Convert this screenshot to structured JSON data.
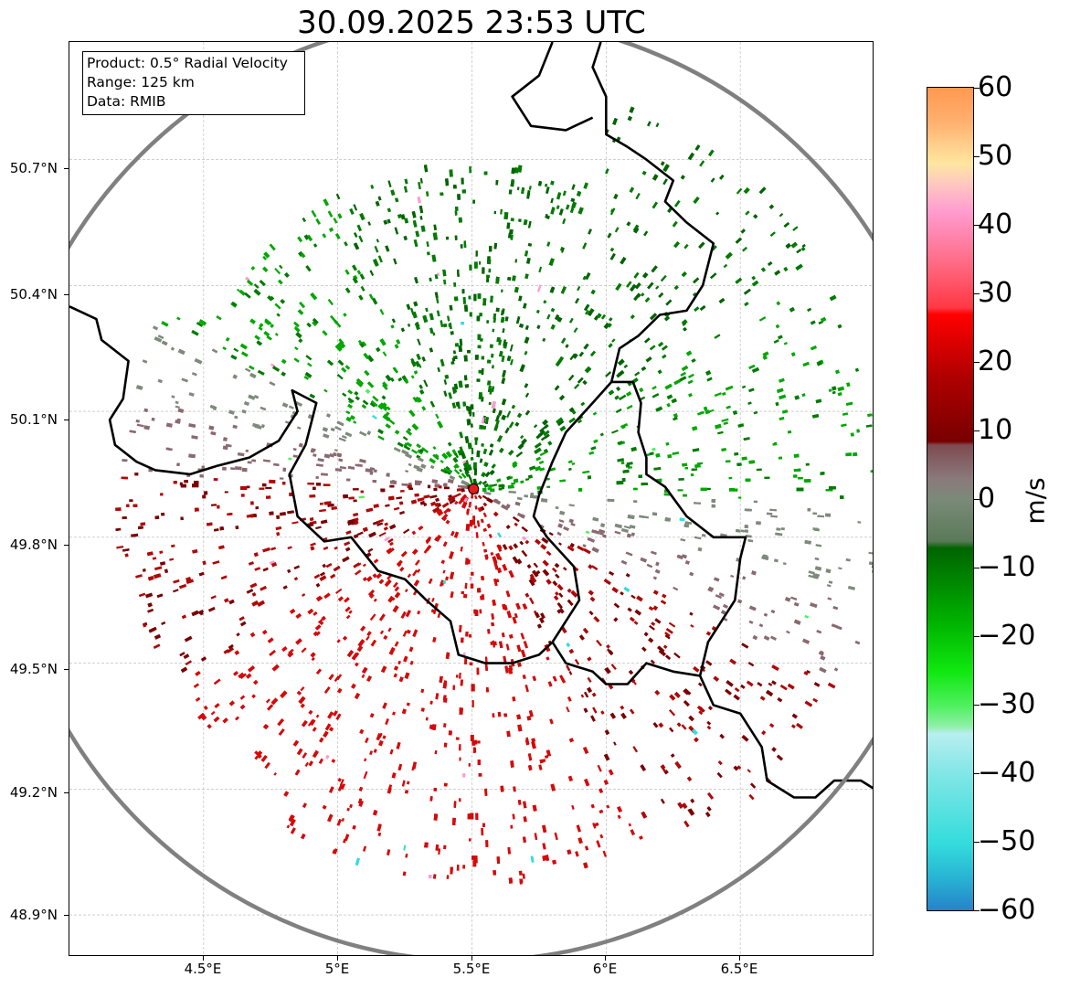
{
  "title": "30.09.2025 23:53 UTC",
  "info": {
    "product": "Product: 0.5° Radial Velocity",
    "range": "Range: 125 km",
    "data": "Data: RMIB"
  },
  "axes": {
    "lat_ticks": [
      "50.7°N",
      "50.4°N",
      "50.1°N",
      "49.8°N",
      "49.5°N",
      "49.2°N",
      "48.9°N"
    ],
    "lon_ticks": [
      "4.5°E",
      "5°E",
      "5.5°E",
      "6°E",
      "6.5°E"
    ]
  },
  "colorbar": {
    "unit": "m/s",
    "ticks": [
      "60",
      "50",
      "40",
      "30",
      "20",
      "10",
      "0",
      "−10",
      "−20",
      "−30",
      "−40",
      "−50",
      "−60"
    ],
    "min": -60,
    "max": 60,
    "stops": [
      {
        "v": -60,
        "c": "#2580c8"
      },
      {
        "v": -55,
        "c": "#28b4d4"
      },
      {
        "v": -50,
        "c": "#34dcdc"
      },
      {
        "v": -40,
        "c": "#80e6e6"
      },
      {
        "v": -34,
        "c": "#b8eef0"
      },
      {
        "v": -33,
        "c": "#90f0a8"
      },
      {
        "v": -30,
        "c": "#50f060"
      },
      {
        "v": -25,
        "c": "#10e810"
      },
      {
        "v": -18,
        "c": "#00b400"
      },
      {
        "v": -12,
        "c": "#008800"
      },
      {
        "v": -7,
        "c": "#006400"
      },
      {
        "v": -6,
        "c": "#5a7a58"
      },
      {
        "v": 0,
        "c": "#7a8a78"
      },
      {
        "v": 3,
        "c": "#8a7a7c"
      },
      {
        "v": 8,
        "c": "#7e4a50"
      },
      {
        "v": 8.5,
        "c": "#780000"
      },
      {
        "v": 18,
        "c": "#b00000"
      },
      {
        "v": 27,
        "c": "#ff0000"
      },
      {
        "v": 28,
        "c": "#ff3844"
      },
      {
        "v": 35,
        "c": "#ff6e8a"
      },
      {
        "v": 42,
        "c": "#ff9cd0"
      },
      {
        "v": 46,
        "c": "#ffc8c0"
      },
      {
        "v": 49,
        "c": "#ffe6a0"
      },
      {
        "v": 55,
        "c": "#ffb070"
      },
      {
        "v": 60,
        "c": "#ff9850"
      }
    ]
  },
  "radar": {
    "site": {
      "lat": 49.915,
      "lon": 5.506
    },
    "range_km": 125,
    "lon_range": [
      4.0,
      7.0
    ],
    "lat_range": [
      48.8,
      50.98
    ],
    "colors": {
      "receding_dark": "#7a0000",
      "receding": "#b00808",
      "receding_bright": "#d40a0a",
      "zero": "#7e8a7c",
      "zero_red": "#8a6a70",
      "approach": "#007a00",
      "approach_bright": "#00a800",
      "approach_dark": "#006400",
      "site_marker": "#e41a1c",
      "range_ring": "#808080",
      "border": "#000000"
    }
  },
  "borders": [
    [
      [
        4.0,
        50.35
      ],
      [
        4.1,
        50.32
      ],
      [
        4.12,
        50.27
      ],
      [
        4.22,
        50.22
      ],
      [
        4.2,
        50.13
      ],
      [
        4.15,
        50.08
      ],
      [
        4.17,
        50.02
      ],
      [
        4.25,
        49.98
      ],
      [
        4.32,
        49.96
      ],
      [
        4.45,
        49.95
      ],
      [
        4.55,
        49.97
      ],
      [
        4.67,
        49.99
      ],
      [
        4.78,
        50.03
      ],
      [
        4.85,
        50.1
      ],
      [
        4.83,
        50.15
      ],
      [
        4.92,
        50.12
      ],
      [
        4.88,
        50.02
      ],
      [
        4.82,
        49.95
      ],
      [
        4.85,
        49.85
      ],
      [
        4.95,
        49.79
      ],
      [
        5.05,
        49.8
      ],
      [
        5.15,
        49.72
      ],
      [
        5.25,
        49.7
      ],
      [
        5.33,
        49.65
      ],
      [
        5.42,
        49.6
      ],
      [
        5.45,
        49.52
      ],
      [
        5.55,
        49.5
      ],
      [
        5.65,
        49.5
      ],
      [
        5.75,
        49.52
      ],
      [
        5.8,
        49.55
      ]
    ],
    [
      [
        5.8,
        49.55
      ],
      [
        5.85,
        49.6
      ],
      [
        5.9,
        49.65
      ],
      [
        5.88,
        49.73
      ],
      [
        5.78,
        49.8
      ],
      [
        5.73,
        49.85
      ],
      [
        5.75,
        49.9
      ],
      [
        5.8,
        49.98
      ],
      [
        5.85,
        50.05
      ],
      [
        5.95,
        50.12
      ],
      [
        6.02,
        50.17
      ],
      [
        6.1,
        50.17
      ],
      [
        6.13,
        50.12
      ],
      [
        6.12,
        50.05
      ],
      [
        6.15,
        49.99
      ],
      [
        6.15,
        49.95
      ],
      [
        6.22,
        49.92
      ],
      [
        6.3,
        49.85
      ],
      [
        6.4,
        49.8
      ],
      [
        6.52,
        49.8
      ],
      [
        6.5,
        49.75
      ],
      [
        6.48,
        49.65
      ],
      [
        6.38,
        49.55
      ],
      [
        6.35,
        49.47
      ],
      [
        6.25,
        49.48
      ],
      [
        6.15,
        49.5
      ],
      [
        6.08,
        49.45
      ],
      [
        6.0,
        49.45
      ],
      [
        5.95,
        49.48
      ],
      [
        5.85,
        49.5
      ],
      [
        5.8,
        49.55
      ]
    ],
    [
      [
        6.02,
        50.17
      ],
      [
        6.05,
        50.25
      ],
      [
        6.12,
        50.28
      ],
      [
        6.2,
        50.33
      ],
      [
        6.3,
        50.34
      ],
      [
        6.36,
        50.4
      ],
      [
        6.4,
        50.5
      ],
      [
        6.3,
        50.55
      ],
      [
        6.22,
        50.6
      ],
      [
        6.25,
        50.65
      ],
      [
        6.15,
        50.7
      ],
      [
        6.08,
        50.73
      ],
      [
        6.0,
        50.76
      ],
      [
        6.0,
        50.85
      ],
      [
        5.95,
        50.92
      ],
      [
        5.98,
        50.98
      ]
    ],
    [
      [
        5.8,
        50.98
      ],
      [
        5.75,
        50.9
      ],
      [
        5.65,
        50.85
      ],
      [
        5.72,
        50.78
      ],
      [
        5.85,
        50.77
      ],
      [
        5.95,
        50.8
      ]
    ],
    [
      [
        6.35,
        49.47
      ],
      [
        6.4,
        49.4
      ],
      [
        6.5,
        49.38
      ],
      [
        6.58,
        49.3
      ],
      [
        6.6,
        49.22
      ],
      [
        6.7,
        49.18
      ],
      [
        6.78,
        49.18
      ],
      [
        6.85,
        49.22
      ],
      [
        6.95,
        49.22
      ],
      [
        7.0,
        49.2
      ]
    ]
  ]
}
